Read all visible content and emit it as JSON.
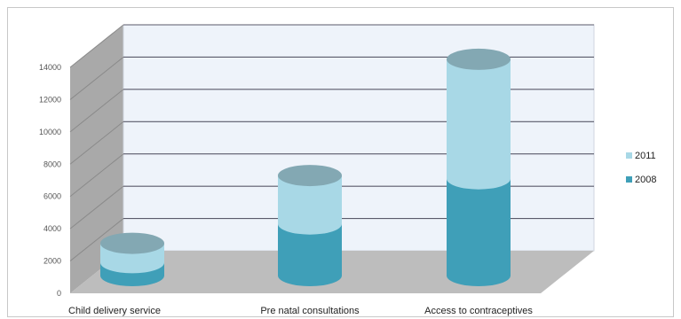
{
  "chart_data": {
    "type": "bar",
    "stacked": true,
    "three_d": true,
    "categories": [
      "Child delivery service",
      "Pre natal consultations",
      "Access to contraceptives"
    ],
    "series": [
      {
        "name": "2008",
        "values": [
          800,
          3200,
          6000
        ]
      },
      {
        "name": "2011",
        "values": [
          1200,
          3000,
          7400
        ]
      }
    ],
    "yticks": [
      0,
      2000,
      4000,
      6000,
      8000,
      10000,
      12000,
      14000
    ],
    "ylim": [
      0,
      14000
    ],
    "grid": true,
    "legend_position": "right",
    "colors": {
      "2008": "#3f9fb8",
      "2011": "#a8d8e6",
      "wall": "#eef3fa",
      "side_wall": "#a9a9a9",
      "floor": "#bdbdbd"
    }
  }
}
